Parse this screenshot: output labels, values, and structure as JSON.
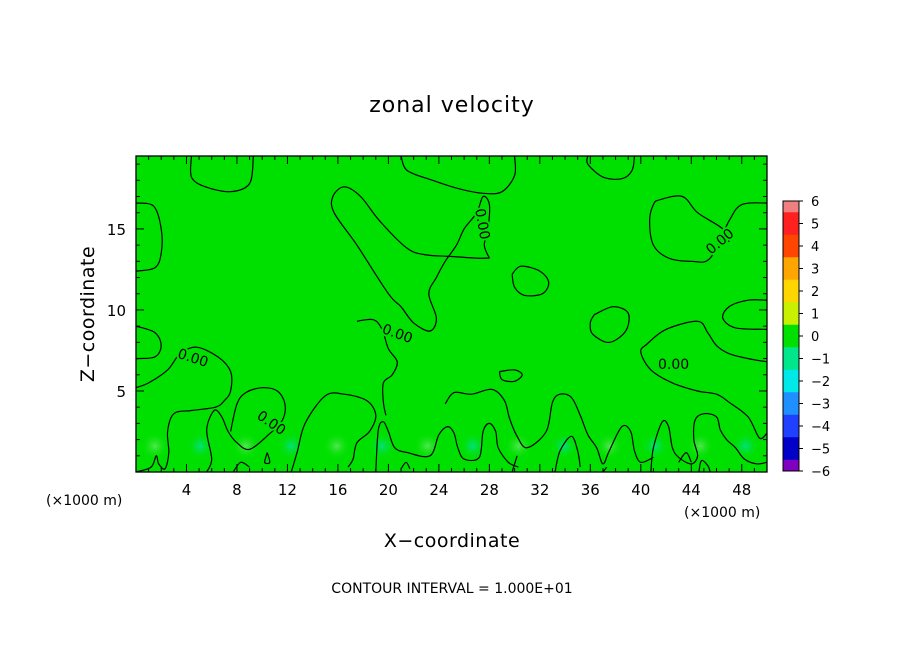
{
  "chart_data": {
    "type": "heatmap",
    "title": "zonal velocity",
    "xlabel": "X−coordinate",
    "ylabel": "Z−coordinate",
    "x_unit_label": "(×1000 m)",
    "y_unit_label": "(×1000 m)",
    "xlim": [
      0,
      50
    ],
    "ylim": [
      0,
      19.5
    ],
    "x_ticks": [
      4,
      8,
      12,
      16,
      20,
      24,
      28,
      32,
      36,
      40,
      44,
      48
    ],
    "x_tick_labels": [
      "4",
      "8",
      "12",
      "16",
      "20",
      "24",
      "28",
      "32",
      "36",
      "40",
      "44",
      "48"
    ],
    "y_ticks": [
      5,
      10,
      15
    ],
    "y_tick_labels": [
      "5",
      "10",
      "15"
    ],
    "field_value_dominant": 0,
    "colorbar": {
      "levels": [
        6,
        5,
        4,
        3,
        2,
        1,
        0,
        -1,
        -2,
        -3,
        -4,
        -5,
        -6
      ],
      "labels": [
        "6",
        "5",
        "4",
        "3",
        "2",
        "1",
        "0",
        "−1",
        "−2",
        "−3",
        "−4",
        "−5",
        "−6"
      ],
      "colors": [
        "#f08080",
        "#ff2020",
        "#ff4500",
        "#ffa500",
        "#ffd700",
        "#c8f000",
        "#00e000",
        "#00e68a",
        "#00e8e8",
        "#1e90ff",
        "#2040ff",
        "#0000c8",
        "#8000c0"
      ]
    },
    "contour_labels": [
      {
        "text": "0.00",
        "x": 4.5,
        "z": 7.0
      },
      {
        "text": "0.00",
        "x": 10.7,
        "z": 3.0
      },
      {
        "text": "0.00",
        "x": 20.7,
        "z": 8.5
      },
      {
        "text": "0.00",
        "x": 27.4,
        "z": 15.3
      },
      {
        "text": "0.00",
        "x": 42.6,
        "z": 6.6
      },
      {
        "text": "0.00",
        "x": 46.3,
        "z": 14.2
      }
    ],
    "contours": [
      [
        [
          4.4,
          19.5
        ],
        [
          4.4,
          18.2
        ],
        [
          5.5,
          17.6
        ],
        [
          7.5,
          17.3
        ],
        [
          9,
          17.8
        ],
        [
          9.3,
          19.5
        ]
      ],
      [
        [
          21,
          19.5
        ],
        [
          21.5,
          18.6
        ],
        [
          23.5,
          18
        ],
        [
          25.5,
          17.5
        ],
        [
          27.5,
          17.2
        ],
        [
          29,
          17.3
        ],
        [
          30,
          18.3
        ],
        [
          30,
          19.5
        ]
      ],
      [
        [
          39.5,
          19.5
        ],
        [
          39.3,
          18.6
        ],
        [
          38.5,
          18.1
        ],
        [
          37,
          18.2
        ],
        [
          35.8,
          19
        ],
        [
          35.8,
          19.5
        ]
      ],
      [
        [
          0,
          16.6
        ],
        [
          1.4,
          16.4
        ],
        [
          2,
          15
        ],
        [
          2,
          13.5
        ],
        [
          1.5,
          12.6
        ],
        [
          0,
          12.4
        ]
      ],
      [
        [
          50,
          16.6
        ],
        [
          48,
          16.5
        ],
        [
          47,
          15.5
        ],
        [
          45.5,
          13.2
        ],
        [
          44,
          13
        ],
        [
          42.2,
          13.2
        ],
        [
          41,
          14
        ],
        [
          40.7,
          15.5
        ],
        [
          41,
          16.5
        ],
        [
          41.5,
          16.8
        ],
        [
          43.3,
          17
        ],
        [
          44.5,
          16
        ],
        [
          46.5,
          15
        ],
        [
          47,
          14.2
        ]
      ],
      [
        [
          28,
          13.2
        ],
        [
          27,
          13.2
        ],
        [
          25,
          13.3
        ],
        [
          23,
          13.4
        ],
        [
          21.5,
          13.8
        ],
        [
          19.3,
          15.5
        ],
        [
          17.8,
          17
        ],
        [
          16.5,
          17.6
        ],
        [
          15.6,
          17
        ],
        [
          15.7,
          16
        ],
        [
          17.5,
          14
        ],
        [
          20,
          11
        ],
        [
          21,
          10.2
        ],
        [
          22,
          9.2
        ],
        [
          23.3,
          8.7
        ],
        [
          23.8,
          9.5
        ],
        [
          23.2,
          11
        ],
        [
          23.8,
          12
        ],
        [
          24.5,
          13
        ],
        [
          25.4,
          14
        ],
        [
          26,
          15
        ],
        [
          27,
          16
        ],
        [
          27.5,
          17
        ],
        [
          28,
          16.5
        ],
        [
          27.9,
          15
        ],
        [
          27.6,
          14
        ],
        [
          28,
          13.2
        ]
      ],
      [
        [
          29.8,
          12.2
        ],
        [
          30.5,
          12.7
        ],
        [
          32,
          12.4
        ],
        [
          32.7,
          11.7
        ],
        [
          32.2,
          11
        ],
        [
          30.8,
          10.9
        ],
        [
          30,
          11.4
        ],
        [
          29.8,
          12.2
        ]
      ],
      [
        [
          36.3,
          9.7
        ],
        [
          37.8,
          10.2
        ],
        [
          39,
          9.8
        ],
        [
          38.8,
          8.7
        ],
        [
          37.5,
          8
        ],
        [
          36.2,
          8.5
        ],
        [
          36,
          9.2
        ],
        [
          36.3,
          9.7
        ]
      ],
      [
        [
          50,
          10.6
        ],
        [
          48.5,
          10.6
        ],
        [
          47,
          10.2
        ],
        [
          46.5,
          9.5
        ],
        [
          47.5,
          8.9
        ],
        [
          50,
          8.8
        ]
      ],
      [
        [
          50,
          6.8
        ],
        [
          48.5,
          7
        ],
        [
          47,
          7.3
        ],
        [
          46,
          7.8
        ],
        [
          45.3,
          8.6
        ],
        [
          44.5,
          9.3
        ],
        [
          42,
          8.8
        ],
        [
          40.5,
          7.9
        ],
        [
          40,
          7.4
        ],
        [
          40.8,
          6.3
        ],
        [
          42.5,
          5.5
        ],
        [
          44.5,
          5
        ],
        [
          46,
          4.8
        ],
        [
          47,
          4.3
        ],
        [
          48.5,
          3.4
        ],
        [
          49.4,
          2.1
        ],
        [
          50,
          2.4
        ]
      ],
      [
        [
          0,
          9
        ],
        [
          1.5,
          8.6
        ],
        [
          2,
          7.8
        ],
        [
          1.5,
          7.1
        ],
        [
          0,
          7
        ]
      ],
      [
        [
          0,
          5.2
        ],
        [
          1,
          5.5
        ],
        [
          2.5,
          6.3
        ],
        [
          3.5,
          7.3
        ],
        [
          4.8,
          7.7
        ],
        [
          6.5,
          7.1
        ],
        [
          7.5,
          6.2
        ],
        [
          7.5,
          5
        ],
        [
          7,
          4.4
        ],
        [
          6.3,
          4
        ],
        [
          4.5,
          3.8
        ],
        [
          3,
          3.6
        ],
        [
          2.5,
          2.5
        ],
        [
          2.6,
          1.2
        ],
        [
          2.3,
          0.2
        ],
        [
          1.8,
          0.5
        ],
        [
          1.6,
          1
        ],
        [
          1.2,
          0.3
        ],
        [
          0,
          0
        ]
      ],
      [
        [
          5.6,
          0
        ],
        [
          6,
          0.8
        ],
        [
          5.6,
          2.6
        ],
        [
          6.2,
          3.8
        ],
        [
          6.8,
          3.4
        ],
        [
          7.3,
          2.5
        ],
        [
          8,
          1.8
        ],
        [
          9,
          1.4
        ],
        [
          10.5,
          2.3
        ],
        [
          11.6,
          3.2
        ],
        [
          11.8,
          4.2
        ],
        [
          11.2,
          5
        ],
        [
          10,
          5.2
        ],
        [
          8.7,
          4.9
        ],
        [
          8,
          4.2
        ],
        [
          7.5,
          2.5
        ]
      ],
      [
        [
          10.4,
          1.2
        ],
        [
          10.2,
          0.6
        ],
        [
          10.6,
          0.6
        ],
        [
          10.4,
          1.2
        ]
      ],
      [
        [
          12.3,
          0
        ],
        [
          12.8,
          1.3
        ],
        [
          13.4,
          3
        ],
        [
          15,
          4.7
        ],
        [
          16.5,
          4.8
        ],
        [
          18.3,
          4.4
        ],
        [
          19,
          3.5
        ],
        [
          18.5,
          2.5
        ],
        [
          17.5,
          1.8
        ],
        [
          17.2,
          0.8
        ],
        [
          16.8,
          0.3
        ]
      ],
      [
        [
          19,
          0
        ],
        [
          19.2,
          2.6
        ],
        [
          19.6,
          3.1
        ],
        [
          20,
          2.5
        ],
        [
          20.5,
          1.5
        ],
        [
          21.5,
          1.2
        ],
        [
          23.3,
          1
        ],
        [
          24,
          2.3
        ],
        [
          24.7,
          2.8
        ],
        [
          25.2,
          2.4
        ],
        [
          25.5,
          1.5
        ],
        [
          26,
          0.8
        ],
        [
          27.2,
          0.9
        ],
        [
          27.5,
          2.5
        ],
        [
          28,
          3
        ],
        [
          28.5,
          2.5
        ],
        [
          28.7,
          1.5
        ],
        [
          29.5,
          0.6
        ],
        [
          30.3,
          0.3
        ]
      ],
      [
        [
          17.5,
          9.3
        ],
        [
          18.8,
          9.4
        ],
        [
          19.5,
          8.8
        ],
        [
          20,
          7.6
        ],
        [
          20.7,
          6.8
        ],
        [
          20.3,
          6
        ],
        [
          19.6,
          5.5
        ],
        [
          19.6,
          4.3
        ],
        [
          19.8,
          3.5
        ]
      ],
      [
        [
          28.8,
          6.2
        ],
        [
          30,
          6.3
        ],
        [
          30.6,
          6
        ],
        [
          30,
          5.6
        ],
        [
          29,
          5.7
        ],
        [
          28.8,
          6.2
        ]
      ],
      [
        [
          24.5,
          4.2
        ],
        [
          25.2,
          4.9
        ],
        [
          26.6,
          4.8
        ],
        [
          28.2,
          5.1
        ],
        [
          29.2,
          4.4
        ],
        [
          29.6,
          3.3
        ],
        [
          30.2,
          2.2
        ],
        [
          31,
          1.5
        ],
        [
          32.5,
          2.5
        ],
        [
          33,
          4.3
        ],
        [
          33.6,
          4.8
        ],
        [
          34.5,
          4.6
        ],
        [
          35.2,
          3.5
        ],
        [
          35.8,
          2.3
        ],
        [
          36.5,
          1.5
        ],
        [
          37,
          0.5
        ],
        [
          37.5,
          1.3
        ],
        [
          38.5,
          2.8
        ],
        [
          39.2,
          2.5
        ],
        [
          39.5,
          1.3
        ],
        [
          40,
          0.6
        ],
        [
          41,
          0.9
        ]
      ],
      [
        [
          29.8,
          0
        ],
        [
          30.2,
          1
        ]
      ],
      [
        [
          33.2,
          0
        ],
        [
          33.6,
          1.3
        ],
        [
          34.5,
          2.2
        ],
        [
          35,
          1.3
        ],
        [
          35.2,
          0.3
        ]
      ],
      [
        [
          37,
          0
        ],
        [
          37.3,
          0.3
        ]
      ],
      [
        [
          40.8,
          0
        ],
        [
          41,
          1.5
        ],
        [
          41.7,
          3.1
        ],
        [
          42.2,
          2.8
        ],
        [
          42.5,
          1.5
        ],
        [
          43,
          0.9
        ],
        [
          44,
          0.5
        ],
        [
          44.5,
          1
        ],
        [
          44.2,
          2
        ],
        [
          44.3,
          3.2
        ],
        [
          45,
          3.6
        ],
        [
          46,
          3.4
        ],
        [
          46.3,
          2.6
        ],
        [
          46.8,
          2
        ],
        [
          47.5,
          1.5
        ],
        [
          48.2,
          0.8
        ],
        [
          49.2,
          0.5
        ],
        [
          50,
          0.6
        ]
      ],
      [
        [
          43,
          0.6
        ],
        [
          43.6,
          1.2
        ],
        [
          44,
          0.6
        ]
      ],
      [
        [
          21,
          0.2
        ],
        [
          21.4,
          0.6
        ],
        [
          21.7,
          0.2
        ]
      ],
      [
        [
          7.7,
          0
        ],
        [
          8.3,
          0.6
        ],
        [
          9,
          0.3
        ]
      ],
      [
        [
          44.6,
          0
        ],
        [
          44.8,
          0.7
        ],
        [
          45.3,
          0.4
        ],
        [
          45.5,
          0
        ]
      ]
    ]
  },
  "footer": {
    "contour_interval_text": "CONTOUR INTERVAL = 1.000E+01"
  }
}
